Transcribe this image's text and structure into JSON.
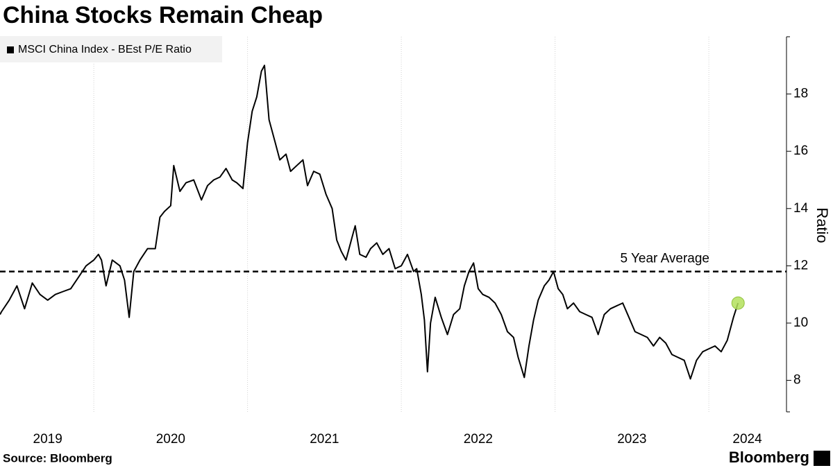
{
  "chart_data": {
    "type": "line",
    "title": "China Stocks Remain Cheap",
    "y_label": "Ratio",
    "source": "Source: Bloomberg",
    "brand": "Bloomberg",
    "x": [
      2019.39,
      2019.4,
      2019.45,
      2019.5,
      2019.55,
      2019.6,
      2019.65,
      2019.7,
      2019.75,
      2019.8,
      2019.85,
      2019.9,
      2019.95,
      2020.0,
      2020.03,
      2020.05,
      2020.08,
      2020.12,
      2020.17,
      2020.2,
      2020.23,
      2020.26,
      2020.3,
      2020.35,
      2020.4,
      2020.43,
      2020.46,
      2020.5,
      2020.52,
      2020.56,
      2020.6,
      2020.65,
      2020.7,
      2020.74,
      2020.78,
      2020.82,
      2020.86,
      2020.9,
      2020.93,
      2020.97,
      2021.0,
      2021.03,
      2021.06,
      2021.09,
      2021.11,
      2021.14,
      2021.18,
      2021.21,
      2021.25,
      2021.28,
      2021.32,
      2021.36,
      2021.39,
      2021.43,
      2021.47,
      2021.51,
      2021.55,
      2021.58,
      2021.61,
      2021.64,
      2021.68,
      2021.7,
      2021.73,
      2021.77,
      2021.8,
      2021.84,
      2021.88,
      2021.92,
      2021.96,
      2022.0,
      2022.04,
      2022.08,
      2022.1,
      2022.13,
      2022.15,
      2022.17,
      2022.19,
      2022.22,
      2022.26,
      2022.3,
      2022.34,
      2022.38,
      2022.41,
      2022.44,
      2022.47,
      2022.5,
      2022.53,
      2022.57,
      2022.61,
      2022.65,
      2022.69,
      2022.73,
      2022.76,
      2022.8,
      2022.83,
      2022.86,
      2022.89,
      2022.93,
      2022.96,
      2022.99,
      2023.02,
      2023.05,
      2023.08,
      2023.12,
      2023.16,
      2023.2,
      2023.24,
      2023.28,
      2023.32,
      2023.36,
      2023.4,
      2023.44,
      2023.48,
      2023.52,
      2023.56,
      2023.6,
      2023.64,
      2023.68,
      2023.72,
      2023.76,
      2023.8,
      2023.84,
      2023.88,
      2023.92,
      2023.96,
      2024.0,
      2024.04,
      2024.08,
      2024.12,
      2024.16,
      2024.19
    ],
    "series": [
      {
        "name": "MSCI China Index - BEst P/E Ratio",
        "color": "#000000",
        "values": [
          10.3,
          10.4,
          10.8,
          11.3,
          10.5,
          11.4,
          11.0,
          10.8,
          11.0,
          11.1,
          11.2,
          11.6,
          12.0,
          12.2,
          12.4,
          12.2,
          11.3,
          12.2,
          12.0,
          11.5,
          10.2,
          11.8,
          12.2,
          12.6,
          12.6,
          13.7,
          13.9,
          14.1,
          15.5,
          14.6,
          14.9,
          15.0,
          14.3,
          14.8,
          15.0,
          15.1,
          15.4,
          15.0,
          14.9,
          14.7,
          16.3,
          17.4,
          17.9,
          18.8,
          19.0,
          17.1,
          16.3,
          15.7,
          15.9,
          15.3,
          15.5,
          15.7,
          14.8,
          15.3,
          15.2,
          14.5,
          14.0,
          12.9,
          12.5,
          12.2,
          13.0,
          13.4,
          12.4,
          12.3,
          12.6,
          12.8,
          12.4,
          12.6,
          11.9,
          12.0,
          12.4,
          11.8,
          11.9,
          11.0,
          10.1,
          8.3,
          10.0,
          10.9,
          10.2,
          9.6,
          10.3,
          10.5,
          11.3,
          11.8,
          12.1,
          11.2,
          11.0,
          10.9,
          10.7,
          10.3,
          9.7,
          9.5,
          8.8,
          8.1,
          9.2,
          10.1,
          10.8,
          11.3,
          11.5,
          11.8,
          11.2,
          11.0,
          10.5,
          10.7,
          10.4,
          10.3,
          10.2,
          9.6,
          10.3,
          10.5,
          10.6,
          10.7,
          10.2,
          9.7,
          9.6,
          9.5,
          9.2,
          9.5,
          9.3,
          8.9,
          8.8,
          8.7,
          8.05,
          8.7,
          9.0,
          9.1,
          9.2,
          9.0,
          9.4,
          10.2,
          10.7
        ]
      }
    ],
    "highlight_last": true,
    "highlight_color": "#b3e05c",
    "reference_line": {
      "value": 11.8,
      "label": "5 Year Average"
    },
    "xlim": [
      2019.39,
      2024.505
    ],
    "xticks": [
      {
        "value": 2019.7,
        "label": "2019"
      },
      {
        "value": 2020.5,
        "label": "2020"
      },
      {
        "value": 2021.5,
        "label": "2021"
      },
      {
        "value": 2022.5,
        "label": "2022"
      },
      {
        "value": 2023.5,
        "label": "2023"
      },
      {
        "value": 2024.25,
        "label": "2024"
      }
    ],
    "xgrid": [
      2020,
      2021,
      2022,
      2023,
      2024
    ],
    "ylim": [
      6.9,
      20.0
    ],
    "yticks": [
      8,
      10,
      12,
      14,
      16,
      18
    ],
    "y_axis_side": "right",
    "legend_position": "top-left"
  }
}
